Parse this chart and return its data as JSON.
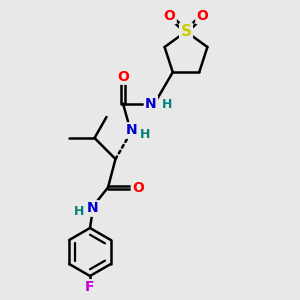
{
  "bg_color": "#e8e8e8",
  "atom_colors": {
    "C": "#000000",
    "N": "#0000cc",
    "O": "#ff0000",
    "S": "#cccc00",
    "F": "#cc00cc",
    "H": "#008080"
  },
  "bond_color": "#000000",
  "bond_width": 1.8,
  "font_size": 10,
  "fig_size": [
    3.0,
    3.0
  ],
  "dpi": 100
}
